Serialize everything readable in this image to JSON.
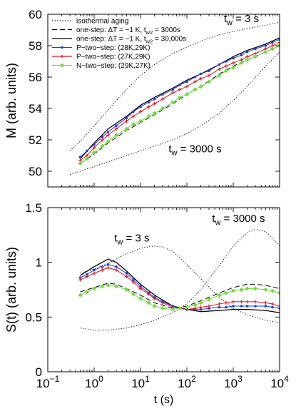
{
  "chart_data": [
    {
      "type": "line",
      "title": "",
      "xlabel": "",
      "ylabel": "M  (arb. units)",
      "xscale": "log",
      "xlim": [
        0.1,
        10000
      ],
      "ylim": [
        49,
        60
      ],
      "xticks": [
        0.1,
        1,
        10,
        100,
        1000,
        10000
      ],
      "xticklabels": [
        "",
        "",
        "",
        "",
        "",
        ""
      ],
      "yticks": [
        50,
        52,
        54,
        56,
        58,
        60
      ],
      "yticklabels": [
        "50",
        "52",
        "54",
        "56",
        "58",
        "60"
      ],
      "grid": false,
      "legend_position": "top-left",
      "legend": [
        {
          "label": "isothermal aging",
          "style": "dotted",
          "color": "#000000",
          "marker": ""
        },
        {
          "label": "one-step: ΔT = −1 K, t",
          "sub": "w2",
          "tail": " = 3000s",
          "style": "dashed",
          "color": "#000000",
          "marker": ""
        },
        {
          "label": "one-step: ΔT = −1 K, t",
          "sub": "w2",
          "tail": " = 30,000s",
          "style": "solid",
          "color": "#000000",
          "marker": ""
        },
        {
          "label": "P−two−step: (28K,29K)",
          "sub": "",
          "tail": "",
          "style": "solid",
          "color": "#1f3fdc",
          "marker": "dot"
        },
        {
          "label": "P−two−step: (27K,29K)",
          "sub": "",
          "tail": "",
          "style": "solid",
          "color": "#e8141e",
          "marker": "plus"
        },
        {
          "label": "N−two−step: (29K,27K)",
          "sub": "",
          "tail": "",
          "style": "solid",
          "color": "#6fdc3c",
          "marker": "diamond"
        }
      ],
      "annotations": [
        {
          "text": "t",
          "sub": "w",
          "tail": " = 3 s",
          "at": [
            1500,
            59.5
          ]
        },
        {
          "text": "t",
          "sub": "w",
          "tail": " = 3000 s",
          "at": [
            150,
            51.2
          ]
        }
      ],
      "series": [
        {
          "style": "dotted",
          "color": "#000000",
          "marker": "",
          "x": [
            0.3,
            0.5,
            1,
            2,
            3,
            5,
            10,
            20,
            50,
            100,
            200,
            500,
            1000,
            2000,
            5000,
            10000
          ],
          "y": [
            51.3,
            51.9,
            52.9,
            53.9,
            54.5,
            55.2,
            56.1,
            56.8,
            57.5,
            57.9,
            58.3,
            58.7,
            58.9,
            59.1,
            59.3,
            59.5
          ]
        },
        {
          "style": "dotted",
          "color": "#000000",
          "marker": "",
          "x": [
            0.3,
            0.5,
            1,
            2,
            5,
            10,
            20,
            50,
            100,
            200,
            500,
            1000,
            2000,
            5000,
            10000
          ],
          "y": [
            49.8,
            50.0,
            50.3,
            50.6,
            51.0,
            51.3,
            51.6,
            52.0,
            52.4,
            52.9,
            53.7,
            54.5,
            55.4,
            56.7,
            57.6
          ]
        },
        {
          "style": "dashed",
          "color": "#000000",
          "marker": "",
          "x": [
            0.5,
            1,
            2,
            5,
            10,
            20,
            50,
            100,
            200,
            500,
            1000,
            2000,
            5000,
            10000
          ],
          "y": [
            50.5,
            51.1,
            51.8,
            52.6,
            53.1,
            53.6,
            54.3,
            54.9,
            55.4,
            56.2,
            56.7,
            57.1,
            57.6,
            58.0
          ]
        },
        {
          "style": "solid",
          "color": "#000000",
          "marker": "",
          "x": [
            0.5,
            1,
            2,
            5,
            10,
            20,
            50,
            100,
            200,
            500,
            1000,
            2000,
            5000,
            10000
          ],
          "y": [
            50.8,
            51.8,
            52.7,
            53.5,
            54.2,
            54.7,
            55.3,
            55.8,
            56.2,
            56.8,
            57.3,
            57.7,
            58.1,
            58.5
          ]
        },
        {
          "name": "P−two−step: (28K,29K)",
          "style": "solid",
          "color": "#1f3fdc",
          "marker": "dot",
          "x": [
            0.5,
            0.7,
            1,
            1.5,
            2,
            3,
            5,
            7,
            10,
            15,
            20,
            30,
            50,
            70,
            100,
            150,
            200,
            300,
            500,
            700,
            1000,
            1500,
            2000,
            3000,
            5000,
            7000,
            10000
          ],
          "y": [
            50.9,
            51.3,
            51.7,
            52.2,
            52.5,
            52.9,
            53.4,
            53.8,
            54.1,
            54.4,
            54.6,
            54.9,
            55.2,
            55.5,
            55.7,
            56.0,
            56.2,
            56.4,
            56.8,
            57.0,
            57.2,
            57.4,
            57.6,
            57.8,
            58.0,
            58.2,
            58.4
          ]
        },
        {
          "name": "P−two−step: (27K,29K)",
          "style": "solid",
          "color": "#e8141e",
          "marker": "plus",
          "x": [
            0.5,
            0.7,
            1,
            1.5,
            2,
            3,
            5,
            7,
            10,
            15,
            20,
            30,
            50,
            70,
            100,
            150,
            200,
            300,
            500,
            700,
            1000,
            1500,
            2000,
            3000,
            5000,
            7000,
            10000
          ],
          "y": [
            50.7,
            51.0,
            51.5,
            52.0,
            52.3,
            52.7,
            53.2,
            53.5,
            53.8,
            54.1,
            54.3,
            54.6,
            55.0,
            55.2,
            55.4,
            55.7,
            55.9,
            56.1,
            56.5,
            56.7,
            56.9,
            57.1,
            57.3,
            57.5,
            57.8,
            58.0,
            58.2
          ]
        },
        {
          "name": "N−two−step: (29K,27K)",
          "style": "solid",
          "color": "#6fdc3c",
          "marker": "diamond",
          "x": [
            0.5,
            0.7,
            1,
            1.5,
            2,
            3,
            5,
            7,
            10,
            15,
            20,
            30,
            50,
            70,
            100,
            150,
            200,
            300,
            500,
            700,
            1000,
            1500,
            2000,
            3000,
            5000,
            7000,
            10000
          ],
          "y": [
            50.5,
            50.8,
            51.2,
            51.6,
            51.9,
            52.3,
            52.7,
            53.0,
            53.2,
            53.5,
            53.7,
            54.0,
            54.4,
            54.7,
            54.9,
            55.2,
            55.4,
            55.7,
            56.1,
            56.4,
            56.6,
            56.9,
            57.1,
            57.3,
            57.6,
            57.8,
            58.0
          ]
        }
      ]
    },
    {
      "type": "line",
      "title": "",
      "xlabel": "t (s)",
      "ylabel": "S(t)  (arb. units)",
      "xscale": "log",
      "xlim": [
        0.1,
        10000
      ],
      "ylim": [
        0,
        1.5
      ],
      "xticks": [
        0.1,
        1,
        10,
        100,
        1000,
        10000
      ],
      "xticklabels": [
        {
          "base": "10",
          "exp": "−1"
        },
        {
          "base": "10",
          "exp": "0"
        },
        {
          "base": "10",
          "exp": "1"
        },
        {
          "base": "10",
          "exp": "2"
        },
        {
          "base": "10",
          "exp": "3"
        },
        {
          "base": "10",
          "exp": "4"
        }
      ],
      "yticks": [
        0,
        0.5,
        1,
        1.5
      ],
      "yticklabels": [
        "0",
        "0.5",
        "1",
        "1.5"
      ],
      "grid": false,
      "annotations": [
        {
          "text": "t",
          "sub": "w",
          "tail": " = 3 s",
          "at": [
            6.5,
            1.19
          ]
        },
        {
          "text": "t",
          "sub": "w",
          "tail": " = 3000 s",
          "at": [
            1300,
            1.37
          ]
        }
      ],
      "series": [
        {
          "style": "dotted",
          "color": "#000000",
          "marker": "",
          "x": [
            0.5,
            1,
            2,
            3,
            5,
            10,
            20,
            30,
            50,
            100,
            200,
            500,
            1000,
            2000,
            5000,
            10000
          ],
          "y": [
            0.9,
            0.94,
            0.99,
            1.03,
            1.08,
            1.13,
            1.15,
            1.14,
            1.1,
            0.98,
            0.85,
            0.68,
            0.58,
            0.52,
            0.47,
            0.45
          ]
        },
        {
          "style": "dotted",
          "color": "#000000",
          "marker": "",
          "x": [
            0.5,
            1,
            2,
            5,
            10,
            20,
            50,
            100,
            200,
            500,
            1000,
            2000,
            3000,
            5000,
            10000
          ],
          "y": [
            0.4,
            0.38,
            0.38,
            0.4,
            0.43,
            0.47,
            0.54,
            0.62,
            0.75,
            0.97,
            1.15,
            1.27,
            1.3,
            1.28,
            1.15
          ]
        },
        {
          "style": "dashed",
          "color": "#000000",
          "marker": "",
          "x": [
            0.5,
            1,
            2,
            3,
            5,
            10,
            20,
            50,
            100,
            200,
            500,
            1000,
            2000,
            3000,
            5000,
            10000
          ],
          "y": [
            0.73,
            0.77,
            0.81,
            0.8,
            0.76,
            0.7,
            0.63,
            0.58,
            0.6,
            0.65,
            0.72,
            0.77,
            0.8,
            0.8,
            0.79,
            0.76
          ]
        },
        {
          "style": "solid",
          "color": "#000000",
          "marker": "",
          "x": [
            0.5,
            1,
            2,
            3,
            5,
            10,
            20,
            50,
            100,
            200,
            500,
            1000,
            2000,
            5000,
            10000
          ],
          "y": [
            0.88,
            0.96,
            1.03,
            1.0,
            0.92,
            0.8,
            0.7,
            0.6,
            0.57,
            0.55,
            0.56,
            0.57,
            0.57,
            0.56,
            0.54
          ]
        },
        {
          "name": "P−two−step: (28K,29K)",
          "style": "solid",
          "color": "#1f3fdc",
          "marker": "dot",
          "x": [
            0.5,
            0.7,
            1,
            1.5,
            2,
            3,
            5,
            7,
            10,
            15,
            20,
            30,
            50,
            70,
            100,
            150,
            200,
            300,
            500,
            700,
            1000,
            1500,
            2000,
            3000,
            5000,
            7000,
            10000
          ],
          "y": [
            0.86,
            0.89,
            0.93,
            0.96,
            0.98,
            0.96,
            0.9,
            0.84,
            0.78,
            0.72,
            0.68,
            0.64,
            0.6,
            0.58,
            0.57,
            0.57,
            0.57,
            0.58,
            0.59,
            0.59,
            0.6,
            0.6,
            0.6,
            0.6,
            0.6,
            0.59,
            0.58
          ]
        },
        {
          "name": "P−two−step: (27K,29K)",
          "style": "solid",
          "color": "#e8141e",
          "marker": "plus",
          "x": [
            0.5,
            0.7,
            1,
            1.5,
            2,
            3,
            5,
            7,
            10,
            15,
            20,
            30,
            50,
            70,
            100,
            150,
            200,
            300,
            500,
            700,
            1000,
            1500,
            2000,
            3000,
            5000,
            7000,
            10000
          ],
          "y": [
            0.84,
            0.87,
            0.9,
            0.93,
            0.95,
            0.93,
            0.87,
            0.82,
            0.76,
            0.71,
            0.67,
            0.63,
            0.59,
            0.58,
            0.57,
            0.58,
            0.59,
            0.6,
            0.62,
            0.63,
            0.64,
            0.64,
            0.64,
            0.64,
            0.63,
            0.62,
            0.6
          ]
        },
        {
          "name": "N−two−step: (29K,27K)",
          "style": "solid",
          "color": "#6fdc3c",
          "marker": "diamond",
          "x": [
            0.5,
            0.7,
            1,
            1.5,
            2,
            3,
            5,
            7,
            10,
            15,
            20,
            30,
            50,
            70,
            100,
            150,
            200,
            300,
            500,
            700,
            1000,
            1500,
            2000,
            3000,
            5000,
            7000,
            10000
          ],
          "y": [
            0.7,
            0.73,
            0.76,
            0.78,
            0.79,
            0.78,
            0.75,
            0.71,
            0.67,
            0.63,
            0.6,
            0.58,
            0.57,
            0.58,
            0.59,
            0.61,
            0.63,
            0.66,
            0.7,
            0.72,
            0.74,
            0.75,
            0.76,
            0.76,
            0.75,
            0.74,
            0.72
          ]
        }
      ]
    }
  ]
}
